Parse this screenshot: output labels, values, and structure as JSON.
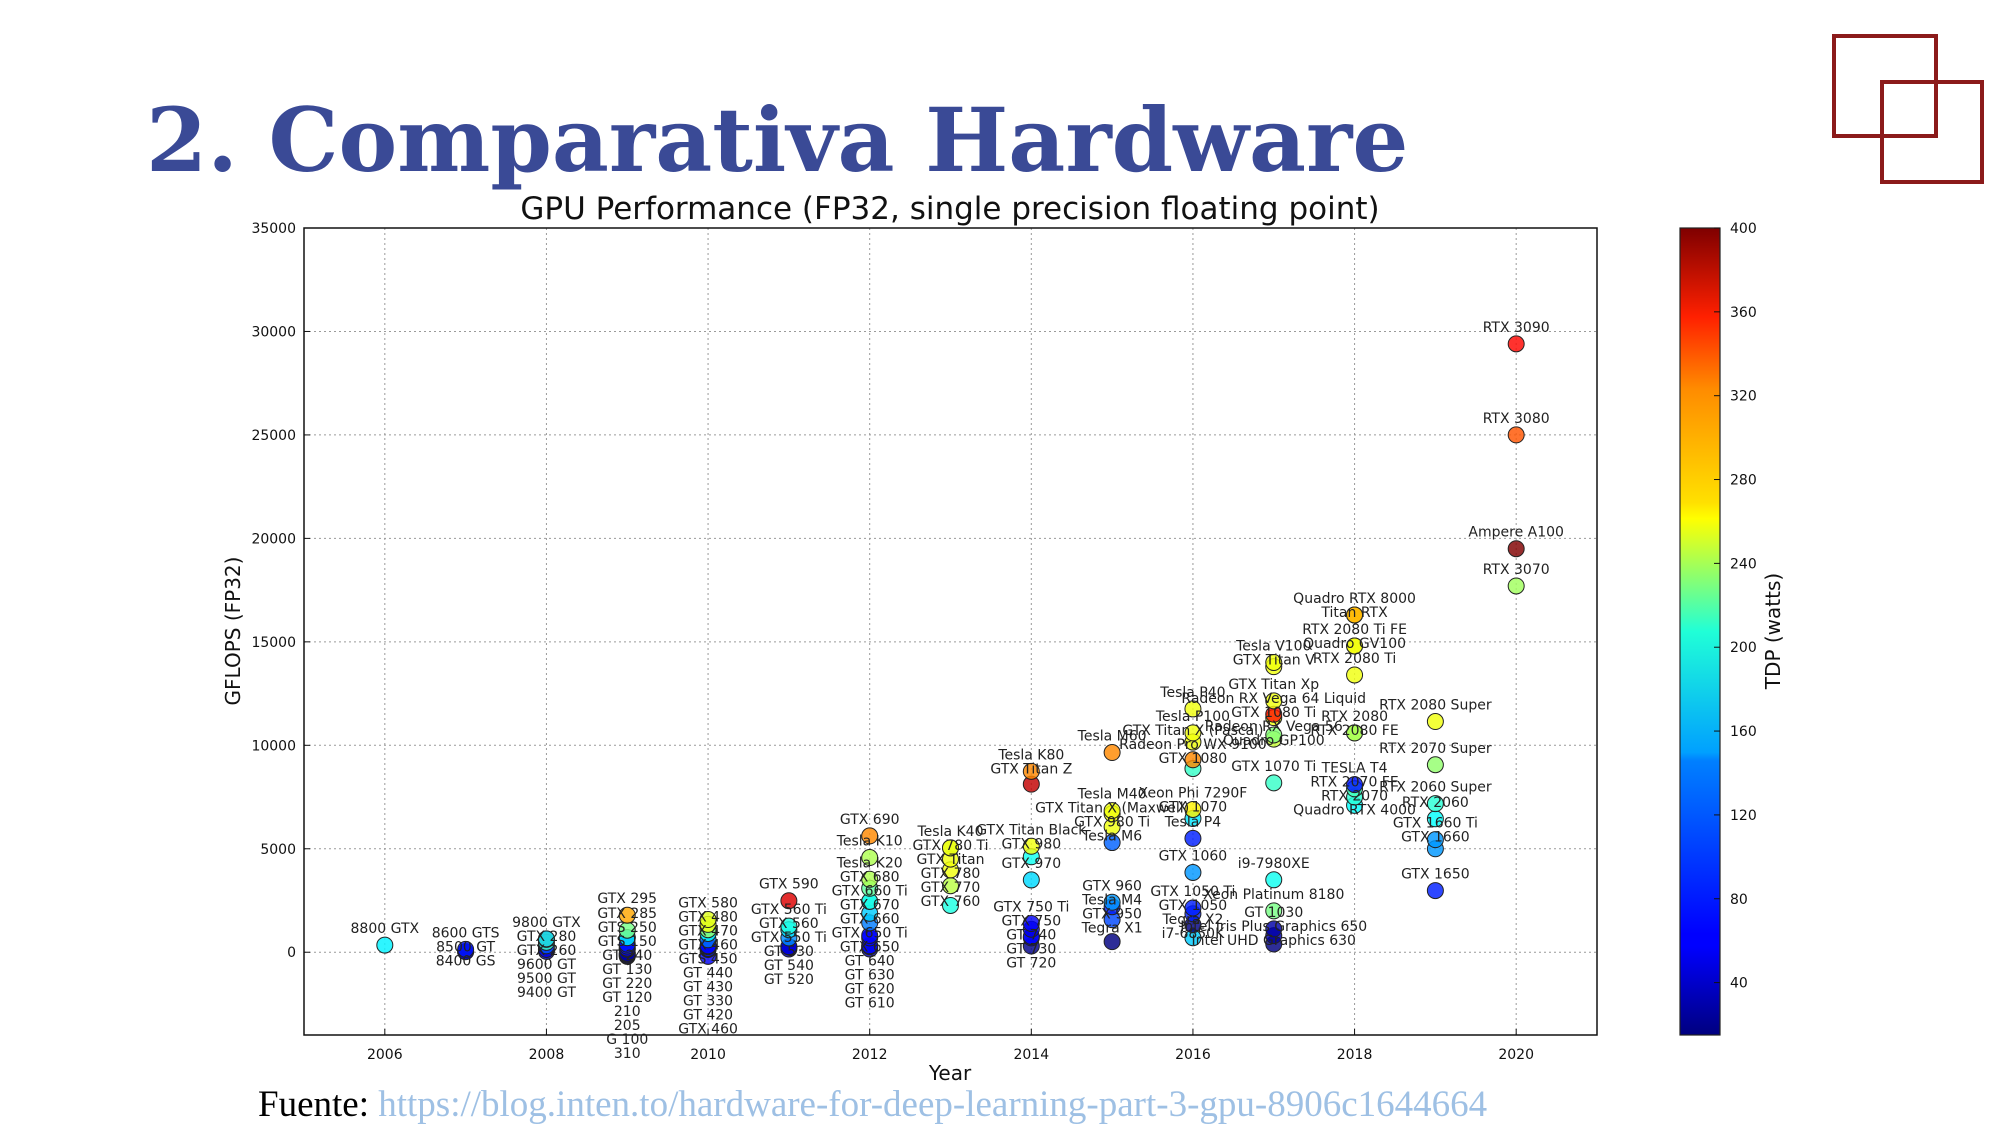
{
  "slide": {
    "title": "2. Comparativa Hardware",
    "source_prefix": "Fuente: ",
    "source_url": "https://blog.inten.to/hardware-for-deep-learning-part-3-gpu-8906c1644664"
  },
  "logo": {
    "icon": "two-overlapping-squares-icon",
    "color": "#8b1a1a"
  },
  "chart_data": {
    "type": "scatter",
    "title": "GPU Performance (FP32, single precision floating point)",
    "xlabel": "Year",
    "ylabel": "GFLOPS (FP32)",
    "xlim": [
      2005,
      2021
    ],
    "ylim": [
      -4000,
      35000
    ],
    "x_ticks": [
      2006,
      2008,
      2010,
      2012,
      2014,
      2016,
      2018,
      2020
    ],
    "y_ticks": [
      0,
      5000,
      10000,
      15000,
      20000,
      25000,
      30000,
      35000
    ],
    "grid": true,
    "colorbar": {
      "label": "TDP (watts)",
      "colormap": "jet",
      "range": [
        15,
        400
      ],
      "ticks": [
        40,
        80,
        120,
        160,
        200,
        240,
        280,
        320,
        360,
        400
      ]
    },
    "points": [
      {
        "label": "8800 GTX",
        "year": 2006,
        "gflops": 345,
        "tdp": 155
      },
      {
        "label": "8600 GTS",
        "year": 2007,
        "gflops": 139,
        "tdp": 71
      },
      {
        "label": "8500 GT",
        "year": 2007,
        "gflops": 29,
        "tdp": 40
      },
      {
        "label": "8400 GS",
        "year": 2007,
        "gflops": 28,
        "tdp": 38
      },
      {
        "label": "9800 GTX",
        "year": 2008,
        "gflops": 648,
        "tdp": 140
      },
      {
        "label": "GTX 260",
        "year": 2008,
        "gflops": 477,
        "tdp": 182
      },
      {
        "label": "GTX 280",
        "year": 2008,
        "gflops": 622,
        "tdp": 236
      },
      {
        "label": "9600 GT",
        "year": 2008,
        "gflops": 312,
        "tdp": 95
      },
      {
        "label": "9500 GT",
        "year": 2008,
        "gflops": 134,
        "tdp": 50
      },
      {
        "label": "9400 GT",
        "year": 2008,
        "gflops": 44,
        "tdp": 50
      },
      {
        "label": "GTX 295",
        "year": 2009,
        "gflops": 1788,
        "tdp": 289
      },
      {
        "label": "GT 130",
        "year": 2009,
        "gflops": 300,
        "tdp": 75
      },
      {
        "label": "GTX 285",
        "year": 2009,
        "gflops": 1063,
        "tdp": 204
      },
      {
        "label": "GT 120",
        "year": 2009,
        "gflops": 137,
        "tdp": 50
      },
      {
        "label": "GTS 250",
        "year": 2009,
        "gflops": 705,
        "tdp": 150
      },
      {
        "label": "GTS 150",
        "year": 2009,
        "gflops": 705,
        "tdp": 141
      },
      {
        "label": "GT 240",
        "year": 2009,
        "gflops": 386,
        "tdp": 69
      },
      {
        "label": "GT 220",
        "year": 2009,
        "gflops": 192,
        "tdp": 58
      },
      {
        "label": "205",
        "year": 2009,
        "gflops": -100,
        "tdp": 30
      },
      {
        "label": "210",
        "year": 2009,
        "gflops": -50,
        "tdp": 30
      },
      {
        "label": "G 100",
        "year": 2009,
        "gflops": -150,
        "tdp": 35
      },
      {
        "label": "310",
        "year": 2009,
        "gflops": -200,
        "tdp": 30
      },
      {
        "label": "GTX 580",
        "year": 2010,
        "gflops": 1581,
        "tdp": 244
      },
      {
        "label": "GTX 480",
        "year": 2010,
        "gflops": 1345,
        "tdp": 250
      },
      {
        "label": "GTS 450",
        "year": 2010,
        "gflops": 601,
        "tdp": 106
      },
      {
        "label": "GTX 470",
        "year": 2010,
        "gflops": 1089,
        "tdp": 215
      },
      {
        "label": "GTX 460",
        "year": 2010,
        "gflops": 907,
        "tdp": 160
      },
      {
        "label": "GT 440",
        "year": 2010,
        "gflops": 311,
        "tdp": 65
      },
      {
        "label": "GT 430",
        "year": 2010,
        "gflops": 269,
        "tdp": 49
      },
      {
        "label": "GT 420",
        "year": 2010,
        "gflops": 134,
        "tdp": 50
      },
      {
        "label": "GT 330",
        "year": 2010,
        "gflops": 182,
        "tdp": 75
      },
      {
        "label": "GTX 460",
        "year": 2010,
        "gflops": -200,
        "tdp": 60
      },
      {
        "label": "GTX 560 Ti",
        "year": 2011,
        "gflops": 1263,
        "tdp": 170
      },
      {
        "label": "GTX 590",
        "year": 2011,
        "gflops": 2488,
        "tdp": 365
      },
      {
        "label": "GTX 560",
        "year": 2011,
        "gflops": 1088,
        "tdp": 150
      },
      {
        "label": "GTX 550 Ti",
        "year": 2011,
        "gflops": 691,
        "tdp": 116
      },
      {
        "label": "GT 530",
        "year": 2011,
        "gflops": 269,
        "tdp": 50
      },
      {
        "label": "GT 540",
        "year": 2011,
        "gflops": 258,
        "tdp": 45
      },
      {
        "label": "GT 520",
        "year": 2011,
        "gflops": 155,
        "tdp": 29
      },
      {
        "label": "GTX 660 Ti",
        "year": 2012,
        "gflops": 2460,
        "tdp": 150
      },
      {
        "label": "GTX 690",
        "year": 2012,
        "gflops": 5622,
        "tdp": 300
      },
      {
        "label": "Tesla K10",
        "year": 2012,
        "gflops": 4577,
        "tdp": 225
      },
      {
        "label": "Tesla K20",
        "year": 2012,
        "gflops": 3524,
        "tdp": 225
      },
      {
        "label": "GTX 680",
        "year": 2012,
        "gflops": 3090,
        "tdp": 195
      },
      {
        "label": "GTX 670",
        "year": 2012,
        "gflops": 2460,
        "tdp": 170
      },
      {
        "label": "GTX 660",
        "year": 2012,
        "gflops": 1881,
        "tdp": 140
      },
      {
        "label": "GTX 650",
        "year": 2012,
        "gflops": 812,
        "tdp": 64
      },
      {
        "label": "GT 640",
        "year": 2012,
        "gflops": 692,
        "tdp": 65
      },
      {
        "label": "GT 620",
        "year": 2012,
        "gflops": 269,
        "tdp": 49
      },
      {
        "label": "GT 610",
        "year": 2012,
        "gflops": 155,
        "tdp": 29
      },
      {
        "label": "GT 630",
        "year": 2012,
        "gflops": 311,
        "tdp": 65
      },
      {
        "label": "GTX 650 Ti",
        "year": 2012,
        "gflops": 1420,
        "tdp": 110
      },
      {
        "label": "GTX Titan",
        "year": 2013,
        "gflops": 4500,
        "tdp": 250
      },
      {
        "label": "Tesla K40",
        "year": 2013,
        "gflops": 5046,
        "tdp": 235
      },
      {
        "label": "GTX 780",
        "year": 2013,
        "gflops": 3977,
        "tdp": 250
      },
      {
        "label": "GTX 780 Ti",
        "year": 2013,
        "gflops": 5046,
        "tdp": 250
      },
      {
        "label": "GTX 770",
        "year": 2013,
        "gflops": 3213,
        "tdp": 230
      },
      {
        "label": "GTX 760",
        "year": 2013,
        "gflops": 2258,
        "tdp": 170
      },
      {
        "label": "Tesla K80",
        "year": 2014,
        "gflops": 8740,
        "tdp": 300
      },
      {
        "label": "GTX Titan Z",
        "year": 2014,
        "gflops": 8122,
        "tdp": 375
      },
      {
        "label": "GTX Titan Black",
        "year": 2014,
        "gflops": 5121,
        "tdp": 250
      },
      {
        "label": "GTX 980",
        "year": 2014,
        "gflops": 4612,
        "tdp": 165
      },
      {
        "label": "GTX 970",
        "year": 2014,
        "gflops": 3494,
        "tdp": 145
      },
      {
        "label": "GTX 750 Ti",
        "year": 2014,
        "gflops": 1389,
        "tdp": 60
      },
      {
        "label": "GTX 750",
        "year": 2014,
        "gflops": 1111,
        "tdp": 55
      },
      {
        "label": "GT 740",
        "year": 2014,
        "gflops": 763,
        "tdp": 64
      },
      {
        "label": "GT 730",
        "year": 2014,
        "gflops": 693,
        "tdp": 49
      },
      {
        "label": "GT 720",
        "year": 2014,
        "gflops": 300,
        "tdp": 19
      },
      {
        "label": "Tesla M60",
        "year": 2015,
        "gflops": 9650,
        "tdp": 300
      },
      {
        "label": "GTX Titan X (Maxwell)",
        "year": 2015,
        "gflops": 6691,
        "tdp": 250
      },
      {
        "label": "Tesla M40",
        "year": 2015,
        "gflops": 6844,
        "tdp": 250
      },
      {
        "label": "GTX 980 Ti",
        "year": 2015,
        "gflops": 6060,
        "tdp": 250
      },
      {
        "label": "Tesla M6",
        "year": 2015,
        "gflops": 5300,
        "tdp": 100
      },
      {
        "label": "Tesla M4",
        "year": 2015,
        "gflops": 2200,
        "tdp": 75
      },
      {
        "label": "GTX 960",
        "year": 2015,
        "gflops": 2413,
        "tdp": 120
      },
      {
        "label": "GTX 950",
        "year": 2015,
        "gflops": 1573,
        "tdp": 90
      },
      {
        "label": "Tegra X1",
        "year": 2015,
        "gflops": 512,
        "tdp": 15
      },
      {
        "label": "Tesla P40",
        "year": 2016,
        "gflops": 11758,
        "tdp": 250
      },
      {
        "label": "Tesla P100",
        "year": 2016,
        "gflops": 10600,
        "tdp": 250
      },
      {
        "label": "GTX Titan X (Pascal)",
        "year": 2016,
        "gflops": 10157,
        "tdp": 250
      },
      {
        "label": "GTX 1080",
        "year": 2016,
        "gflops": 8873,
        "tdp": 180
      },
      {
        "label": "Radeon Pro WX 9100",
        "year": 2016,
        "gflops": 9300,
        "tdp": 300
      },
      {
        "label": "Xeon Phi 7290F",
        "year": 2016,
        "gflops": 6900,
        "tdp": 260
      },
      {
        "label": "GTX 1070",
        "year": 2016,
        "gflops": 6463,
        "tdp": 150
      },
      {
        "label": "Tesla P4",
        "year": 2016,
        "gflops": 5500,
        "tdp": 75
      },
      {
        "label": "GTX 1060",
        "year": 2016,
        "gflops": 3855,
        "tdp": 120
      },
      {
        "label": "GTX 1050",
        "year": 2016,
        "gflops": 1862,
        "tdp": 75
      },
      {
        "label": "i7-6850K",
        "year": 2016,
        "gflops": 700,
        "tdp": 140
      },
      {
        "label": "Tegra X2",
        "year": 2016,
        "gflops": 1330,
        "tdp": 15
      },
      {
        "label": "GTX 1050 Ti",
        "year": 2016,
        "gflops": 2138,
        "tdp": 75
      },
      {
        "label": "Quadro GP100",
        "year": 2017,
        "gflops": 10300,
        "tdp": 235
      },
      {
        "label": "Tesla V100",
        "year": 2017,
        "gflops": 14000,
        "tdp": 250
      },
      {
        "label": "GTX Titan V",
        "year": 2017,
        "gflops": 13800,
        "tdp": 250
      },
      {
        "label": "GTX 1080 Ti",
        "year": 2017,
        "gflops": 11340,
        "tdp": 250
      },
      {
        "label": "GTX Titan Xp",
        "year": 2017,
        "gflops": 12150,
        "tdp": 250
      },
      {
        "label": "Radeon RX Vega 64 Liquid",
        "year": 2017,
        "gflops": 11500,
        "tdp": 345
      },
      {
        "label": "Radeon RX Vega 56",
        "year": 2017,
        "gflops": 10500,
        "tdp": 210
      },
      {
        "label": "GTX 1070 Ti",
        "year": 2017,
        "gflops": 8186,
        "tdp": 180
      },
      {
        "label": "Intel Iris Plus Graphics 650",
        "year": 2017,
        "gflops": 800,
        "tdp": 28
      },
      {
        "label": "i9-7980XE",
        "year": 2017,
        "gflops": 3500,
        "tdp": 165
      },
      {
        "label": "GT 1030",
        "year": 2017,
        "gflops": 1127,
        "tdp": 30
      },
      {
        "label": "Xeon Platinum 8180",
        "year": 2017,
        "gflops": 2000,
        "tdp": 205
      },
      {
        "label": "Intel UHD Graphics 630",
        "year": 2017,
        "gflops": 400,
        "tdp": 15
      },
      {
        "label": "Quadro RTX 8000",
        "year": 2018,
        "gflops": 16300,
        "tdp": 295
      },
      {
        "label": "Titan RTX",
        "year": 2018,
        "gflops": 16300,
        "tdp": 280
      },
      {
        "label": "RTX 2080 Ti FE",
        "year": 2018,
        "gflops": 14800,
        "tdp": 260
      },
      {
        "label": "Quadro GV100",
        "year": 2018,
        "gflops": 14800,
        "tdp": 250
      },
      {
        "label": "RTX 2080",
        "year": 2018,
        "gflops": 10600,
        "tdp": 215
      },
      {
        "label": "RTX 2080 Ti",
        "year": 2018,
        "gflops": 13400,
        "tdp": 250
      },
      {
        "label": "RTX 2080 FE",
        "year": 2018,
        "gflops": 10600,
        "tdp": 225
      },
      {
        "label": "RTX 2070",
        "year": 2018,
        "gflops": 7500,
        "tdp": 175
      },
      {
        "label": "TESLA T4",
        "year": 2018,
        "gflops": 8100,
        "tdp": 70
      },
      {
        "label": "RTX 2070 FE",
        "year": 2018,
        "gflops": 7900,
        "tdp": 185
      },
      {
        "label": "Quadro RTX 4000",
        "year": 2018,
        "gflops": 7100,
        "tdp": 160
      },
      {
        "label": "RTX 2080 Super",
        "year": 2019,
        "gflops": 11150,
        "tdp": 250
      },
      {
        "label": "RTX 2070 Super",
        "year": 2019,
        "gflops": 9060,
        "tdp": 215
      },
      {
        "label": "RTX 2060 Super",
        "year": 2019,
        "gflops": 7180,
        "tdp": 175
      },
      {
        "label": "GTX 1660",
        "year": 2019,
        "gflops": 5000,
        "tdp": 120
      },
      {
        "label": "RTX 2060",
        "year": 2019,
        "gflops": 6450,
        "tdp": 160
      },
      {
        "label": "GTX 1660 Ti",
        "year": 2019,
        "gflops": 5440,
        "tdp": 120
      },
      {
        "label": "GTX 1650",
        "year": 2019,
        "gflops": 2980,
        "tdp": 75
      },
      {
        "label": "RTX 3090",
        "year": 2020,
        "gflops": 29400,
        "tdp": 350
      },
      {
        "label": "RTX 3080",
        "year": 2020,
        "gflops": 25000,
        "tdp": 320
      },
      {
        "label": "Ampere A100",
        "year": 2020,
        "gflops": 19500,
        "tdp": 400
      },
      {
        "label": "RTX 3070",
        "year": 2020,
        "gflops": 17700,
        "tdp": 220
      }
    ]
  }
}
